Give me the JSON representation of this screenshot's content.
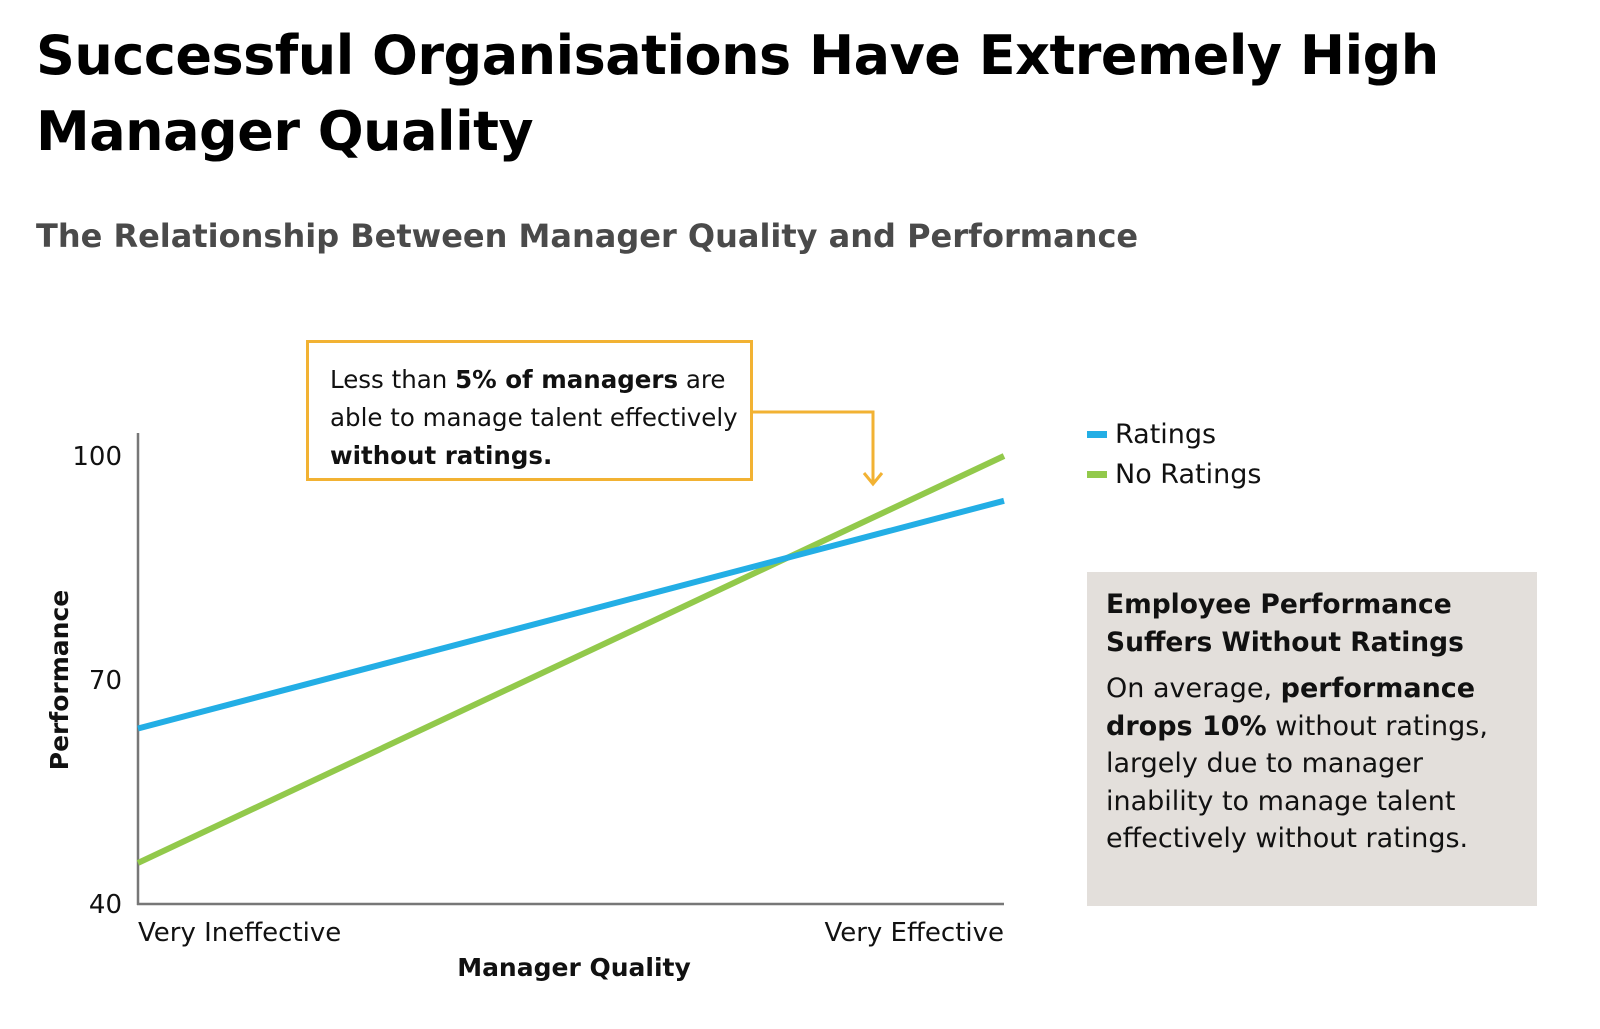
{
  "page": {
    "title": "Successful Organisations Have Extremely High Manager Quality",
    "subtitle": "The Relationship Between Manager Quality and Performance"
  },
  "colors": {
    "ratings": "#23aee5",
    "no_ratings": "#92c94b",
    "callout_border": "#f2b233",
    "info_bg": "#e3dfdb",
    "axis": "#777777"
  },
  "chart_data": {
    "type": "line",
    "x": [
      0,
      1
    ],
    "x_tick_labels": [
      "Very Ineffective",
      "Very Effective"
    ],
    "xlabel": "Manager Quality",
    "ylabel": "Performance",
    "ylim": [
      40,
      100
    ],
    "yticks": [
      40,
      70,
      100
    ],
    "grid": false,
    "legend_position": "right",
    "series": [
      {
        "name": "Ratings",
        "color": "#23aee5",
        "values": [
          63.5,
          94
        ]
      },
      {
        "name": "No Ratings",
        "color": "#92c94b",
        "values": [
          45.5,
          100
        ]
      }
    ]
  },
  "callout": {
    "part1": "Less than ",
    "part2": "5% of managers",
    "part3": " are able to manage talent effectively ",
    "part4": "without ratings."
  },
  "info_box": {
    "heading": "Employee Performance Suffers Without Ratings",
    "body1": "On average, ",
    "body2": "performance drops 10%",
    "body3": " without ratings, largely due to manager inability to manage talent effectively without ratings."
  }
}
